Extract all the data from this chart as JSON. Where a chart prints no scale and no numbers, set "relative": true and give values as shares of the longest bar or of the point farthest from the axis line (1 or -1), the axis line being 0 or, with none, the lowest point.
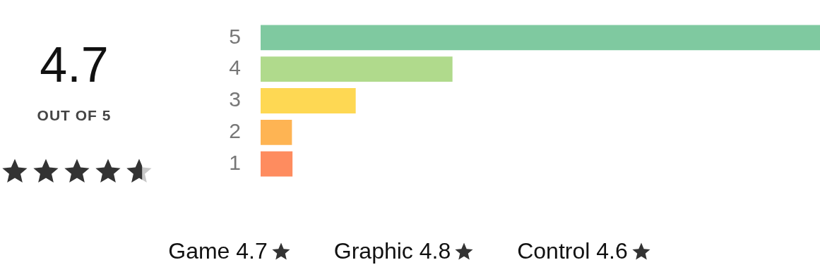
{
  "chart_data": {
    "type": "bar",
    "orientation": "horizontal",
    "relative": true,
    "categories": [
      "5",
      "4",
      "3",
      "2",
      "1"
    ],
    "values": [
      1,
      0.343,
      0.17,
      0.056,
      0.057
    ],
    "colors": [
      "#7fc9a0",
      "#b0da8c",
      "#fed853",
      "#feb453",
      "#fe8c5f"
    ],
    "legend": false,
    "annotations": [
      "4.7",
      "OUT OF 5",
      "Game 4.7",
      "Graphic 4.8",
      "Control 4.6"
    ]
  }
}
